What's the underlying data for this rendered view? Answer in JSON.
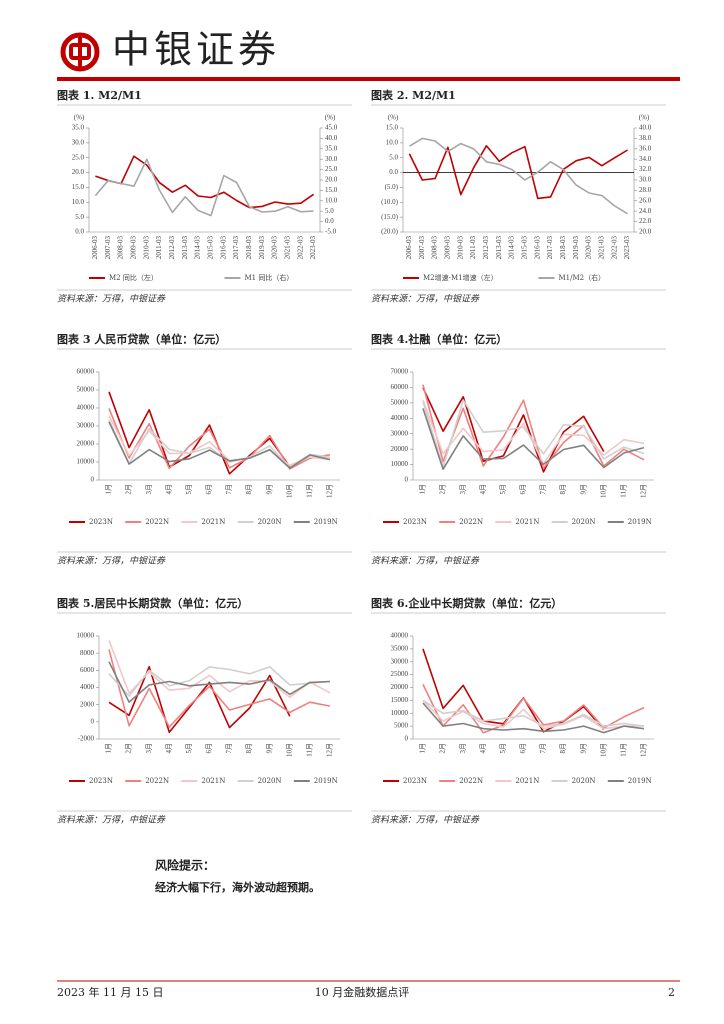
{
  "header": {
    "brand": "中银证券"
  },
  "chart_data": [
    {
      "type": "line",
      "title": "图表 1. M2/M1",
      "source": "资料来源：万得，中银证券",
      "y_label": "(%)",
      "y2_label": "(%)",
      "categories": [
        "2006-03",
        "2007-03",
        "2008-03",
        "2009-03",
        "2010-03",
        "2011-03",
        "2012-03",
        "2013-03",
        "2014-03",
        "2015-03",
        "2016-03",
        "2017-03",
        "2018-03",
        "2019-03",
        "2020-03",
        "2021-03",
        "2022-03",
        "2023-03"
      ],
      "series": [
        {
          "name": "M2 同比（左）",
          "color": "#c00000",
          "values": [
            18.8,
            17.3,
            16.3,
            25.5,
            22.5,
            16.6,
            13.4,
            15.7,
            12.1,
            11.6,
            13.4,
            10.6,
            8.2,
            8.6,
            10.1,
            9.4,
            9.7,
            12.7
          ]
        },
        {
          "name": "M1 同比（右）",
          "color": "#a6a6a6",
          "axis": "y2",
          "values": [
            12.5,
            19.8,
            18.3,
            17.0,
            29.9,
            15.0,
            4.4,
            11.9,
            5.4,
            2.9,
            22.1,
            18.8,
            7.1,
            4.6,
            5.0,
            7.1,
            4.7,
            5.1
          ]
        }
      ],
      "ylim": [
        0,
        35
      ],
      "yticks": [
        {
          "value": 0,
          "label": "0.0"
        },
        {
          "value": 5,
          "label": "5.0"
        },
        {
          "value": 10,
          "label": "10.0"
        },
        {
          "value": 15,
          "label": "15.0"
        },
        {
          "value": 20,
          "label": "20.0"
        },
        {
          "value": 25,
          "label": "25.0"
        },
        {
          "value": 30,
          "label": "30.0"
        },
        {
          "value": 35,
          "label": "35.0"
        }
      ],
      "y2lim": [
        -5,
        45
      ],
      "y2ticks": [
        {
          "value": -5,
          "label": "-5.0"
        },
        {
          "value": 0,
          "label": "0.0"
        },
        {
          "value": 5,
          "label": "5.0"
        },
        {
          "value": 10,
          "label": "10.0"
        },
        {
          "value": 15,
          "label": "15.0"
        },
        {
          "value": 20,
          "label": "20.0"
        },
        {
          "value": 25,
          "label": "25.0"
        },
        {
          "value": 30,
          "label": "30.0"
        },
        {
          "value": 35,
          "label": "35.0"
        },
        {
          "value": 40,
          "label": "40.0"
        },
        {
          "value": 45,
          "label": "45.0"
        }
      ]
    },
    {
      "type": "line",
      "title": "图表 2. M2/M1",
      "source": "资料来源：万得，中银证券",
      "y_label": "(%)",
      "y2_label": "(%)",
      "zero_line": true,
      "categories": [
        "2006-03",
        "2007-03",
        "2008-03",
        "2009-03",
        "2010-03",
        "2011-03",
        "2012-03",
        "2013-03",
        "2014-03",
        "2015-03",
        "2016-03",
        "2017-03",
        "2018-03",
        "2019-03",
        "2020-03",
        "2021-03",
        "2022-03",
        "2023-03"
      ],
      "series": [
        {
          "name": "M2增速-M1增速（左）",
          "color": "#c00000",
          "values": [
            6.3,
            -2.5,
            -2.0,
            8.5,
            -7.4,
            1.6,
            9.0,
            3.8,
            6.7,
            8.7,
            -8.7,
            -8.2,
            1.1,
            4.0,
            5.1,
            2.3,
            5.0,
            7.6
          ]
        },
        {
          "name": "M1/M2（右）",
          "color": "#a6a6a6",
          "axis": "y2",
          "values": [
            36.5,
            38.0,
            37.5,
            35.5,
            37.0,
            36.0,
            33.5,
            33.0,
            32.0,
            30.0,
            31.5,
            33.5,
            32.0,
            29.0,
            27.5,
            27.0,
            25.0,
            23.5
          ]
        }
      ],
      "ylim": [
        -20,
        15
      ],
      "yticks": [
        {
          "value": -20,
          "label": "(20.0)"
        },
        {
          "value": -15,
          "label": "(15.0)"
        },
        {
          "value": -10,
          "label": "(10.0)"
        },
        {
          "value": -5,
          "label": "(5.0)"
        },
        {
          "value": 0,
          "label": "0.0"
        },
        {
          "value": 5,
          "label": "5.0"
        },
        {
          "value": 10,
          "label": "10.0"
        },
        {
          "value": 15,
          "label": "15.0"
        }
      ],
      "y2lim": [
        20,
        40
      ],
      "y2ticks": [
        {
          "value": 20,
          "label": "20.0"
        },
        {
          "value": 22,
          "label": "22.0"
        },
        {
          "value": 24,
          "label": "24.0"
        },
        {
          "value": 26,
          "label": "26.0"
        },
        {
          "value": 28,
          "label": "28.0"
        },
        {
          "value": 30,
          "label": "30.0"
        },
        {
          "value": 32,
          "label": "32.0"
        },
        {
          "value": 34,
          "label": "34.0"
        },
        {
          "value": 36,
          "label": "36.0"
        },
        {
          "value": 38,
          "label": "38.0"
        },
        {
          "value": 40,
          "label": "40.0"
        }
      ]
    },
    {
      "type": "line",
      "title": "图表 3 人民币贷款（单位：亿元）",
      "source": "资料来源：万得，中银证券",
      "categories": [
        "1月",
        "2月",
        "3月",
        "4月",
        "5月",
        "6月",
        "7月",
        "8月",
        "9月",
        "10月",
        "11月",
        "12月"
      ],
      "series": [
        {
          "name": "2023N",
          "color": "#c00000",
          "values": [
            49000,
            18000,
            39000,
            7200,
            13600,
            30500,
            3459,
            13600,
            23100,
            7384,
            null,
            null
          ]
        },
        {
          "name": "2022N",
          "color": "#f08080",
          "values": [
            39800,
            12300,
            31300,
            6454,
            18900,
            28100,
            6790,
            12500,
            24700,
            6152,
            12100,
            14000
          ]
        },
        {
          "name": "2021N",
          "color": "#f4c6c6",
          "values": [
            35800,
            13600,
            27300,
            14700,
            15000,
            21200,
            10800,
            12200,
            16600,
            8262,
            12700,
            11300
          ]
        },
        {
          "name": "2020N",
          "color": "#d0d0d0",
          "values": [
            33400,
            9057,
            28500,
            17000,
            14800,
            18100,
            9927,
            12800,
            19000,
            6898,
            14300,
            12600
          ]
        },
        {
          "name": "2019N",
          "color": "#808080",
          "values": [
            32300,
            8858,
            16900,
            10200,
            11800,
            16600,
            10600,
            12100,
            16900,
            6613,
            13900,
            11400
          ]
        }
      ],
      "ylim": [
        0,
        60000
      ],
      "yticks": [
        0,
        10000,
        20000,
        30000,
        40000,
        50000,
        60000
      ]
    },
    {
      "type": "line",
      "title": "图表 4.社融（单位：亿元）",
      "source": "资料来源：万得，中银证券",
      "categories": [
        "1月",
        "2月",
        "3月",
        "4月",
        "5月",
        "6月",
        "7月",
        "8月",
        "9月",
        "10月",
        "11月",
        "12月"
      ],
      "series": [
        {
          "name": "2023N",
          "color": "#c00000",
          "values": [
            59800,
            31600,
            53900,
            12200,
            15600,
            42200,
            5282,
            31200,
            41300,
            18400,
            null,
            null
          ]
        },
        {
          "name": "2022N",
          "color": "#f08080",
          "values": [
            61800,
            11900,
            46500,
            9102,
            27900,
            51700,
            7561,
            24300,
            35300,
            9079,
            19900,
            13100
          ]
        },
        {
          "name": "2021N",
          "color": "#f4c6c6",
          "values": [
            51700,
            17100,
            33500,
            18500,
            19500,
            36700,
            10600,
            29600,
            29000,
            16200,
            26100,
            23700
          ]
        },
        {
          "name": "2020N",
          "color": "#d0d0d0",
          "values": [
            50700,
            8554,
            51800,
            31000,
            31900,
            34300,
            16900,
            35800,
            34800,
            13700,
            21300,
            17200
          ]
        },
        {
          "name": "2019N",
          "color": "#808080",
          "values": [
            46400,
            7030,
            28600,
            13600,
            14000,
            22600,
            10100,
            19800,
            22500,
            8108,
            17500,
            21000
          ]
        }
      ],
      "ylim": [
        0,
        70000
      ],
      "yticks": [
        0,
        10000,
        20000,
        30000,
        40000,
        50000,
        60000,
        70000
      ]
    },
    {
      "type": "line",
      "title": "图表 5.居民中长期贷款（单位：亿元）",
      "source": "资料来源：万得，中银证券",
      "categories": [
        "1月",
        "2月",
        "3月",
        "4月",
        "5月",
        "6月",
        "7月",
        "8月",
        "9月",
        "10月",
        "11月",
        "12月"
      ],
      "series": [
        {
          "name": "2023N",
          "color": "#c00000",
          "values": [
            2272,
            763,
            6411,
            -1220,
            1684,
            4590,
            -672,
            1607,
            5394,
            645,
            null,
            null
          ]
        },
        {
          "name": "2022N",
          "color": "#f08080",
          "values": [
            8420,
            -459,
            3881,
            -605,
            1920,
            4130,
            1380,
            2030,
            2677,
            1097,
            2290,
            1830
          ]
        },
        {
          "name": "2021N",
          "color": "#f4c6c6",
          "values": [
            9500,
            3325,
            5811,
            3690,
            3921,
            5410,
            3510,
            4780,
            4730,
            2870,
            4620,
            3378
          ]
        },
        {
          "name": "2020N",
          "color": "#d0d0d0",
          "values": [
            5600,
            3000,
            6000,
            4200,
            4800,
            6400,
            6100,
            5600,
            6400,
            4300,
            4500,
            4700
          ]
        },
        {
          "name": "2019N",
          "color": "#808080",
          "values": [
            7000,
            2300,
            4300,
            4700,
            4200,
            4400,
            4600,
            4400,
            4900,
            3200,
            4600,
            4700
          ]
        }
      ],
      "ylim": [
        -2000,
        10000
      ],
      "yticks": [
        -2000,
        0,
        2000,
        4000,
        6000,
        8000,
        10000
      ]
    },
    {
      "type": "line",
      "title": "图表 6.企业中长期贷款（单位：亿元）",
      "source": "资料来源：万得，中银证券",
      "categories": [
        "1月",
        "2月",
        "3月",
        "4月",
        "5月",
        "6月",
        "7月",
        "8月",
        "9月",
        "10月",
        "11月",
        "12月"
      ],
      "series": [
        {
          "name": "2023N",
          "color": "#c00000",
          "values": [
            35000,
            11900,
            20800,
            7012,
            5920,
            16000,
            2800,
            6860,
            12600,
            3700,
            null,
            null
          ]
        },
        {
          "name": "2022N",
          "color": "#f08080",
          "values": [
            21200,
            5031,
            13300,
            2410,
            5413,
            15900,
            5431,
            7000,
            13200,
            4300,
            8600,
            12200
          ]
        },
        {
          "name": "2021N",
          "color": "#f4c6c6",
          "values": [
            15000,
            7000,
            10700,
            6000,
            4700,
            11400,
            4000,
            5800,
            9000,
            4000,
            5000,
            5000
          ]
        },
        {
          "name": "2020N",
          "color": "#d0d0d0",
          "values": [
            15000,
            10000,
            11000,
            7000,
            8000,
            9000,
            5000,
            6000,
            9500,
            5000,
            6000,
            5000
          ]
        },
        {
          "name": "2019N",
          "color": "#808080",
          "values": [
            14000,
            5000,
            6000,
            4000,
            3500,
            4000,
            3000,
            3500,
            5000,
            2500,
            5000,
            4000
          ]
        }
      ],
      "ylim": [
        0,
        40000
      ],
      "yticks": [
        0,
        5000,
        10000,
        15000,
        20000,
        25000,
        30000,
        35000,
        40000
      ]
    }
  ],
  "risk": {
    "title": "风险提示：",
    "text": "经济大幅下行，海外波动超预期。"
  },
  "footer": {
    "date": "2023 年 11 月 15 日",
    "report": "10 月金融数据点评",
    "page": "2"
  }
}
